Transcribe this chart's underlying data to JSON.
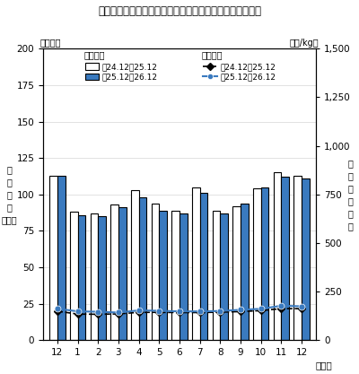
{
  "title": "図２　成牛と畜頭数及び卸売価格（省令）の推移（全国）",
  "x_labels": [
    "12",
    "1",
    "2",
    "3",
    "4",
    "5",
    "6",
    "7",
    "8",
    "9",
    "10",
    "11",
    "12"
  ],
  "x_label_month": "（月）",
  "left_unit": "（千頭）",
  "right_unit": "（円/kg）",
  "left_axis_label": "と畜頭数",
  "right_axis_label": "卸売価格",
  "bar_prev": [
    113,
    88,
    87,
    93,
    103,
    94,
    89,
    105,
    89,
    92,
    104,
    115,
    113
  ],
  "bar_curr": [
    113,
    86,
    85,
    91,
    98,
    89,
    87,
    101,
    87,
    94,
    105,
    112,
    111
  ],
  "line_price_prev": [
    150,
    135,
    134,
    136,
    144,
    144,
    143,
    143,
    145,
    148,
    153,
    163,
    163
  ],
  "line_price_curr": [
    163,
    149,
    147,
    143,
    154,
    152,
    149,
    149,
    151,
    157,
    162,
    178,
    175
  ],
  "left_yticks": [
    0,
    25,
    50,
    75,
    100,
    125,
    150,
    175,
    200
  ],
  "right_yticks": [
    0,
    250,
    500,
    750,
    1000,
    1250,
    1500
  ],
  "right_ytick_labels": [
    "0",
    "250",
    "500",
    "750",
    "1,000",
    "1,250",
    "1,500"
  ],
  "bar_prev_color": "white",
  "bar_prev_edge": "black",
  "bar_curr_color": "#3a7abf",
  "bar_curr_edge": "black",
  "line_prev_color": "black",
  "line_curr_color": "#3a7abf",
  "legend_bar_title": "と畜頭数",
  "legend_line_title": "卸売価格",
  "legend_bar_prev": "刲24.12～25.12",
  "legend_bar_curr": "刲25.12～26.12",
  "legend_line_prev": "刲24.12～25.12",
  "legend_line_curr": "刲25.12～26.12",
  "ylim_left": [
    0,
    200
  ],
  "ylim_right": [
    0,
    1500
  ],
  "left_vert_label": "と\n畜\n頭\n数\n（　）",
  "right_vert_label": "（\n卸\n売\n価\n格\n）"
}
